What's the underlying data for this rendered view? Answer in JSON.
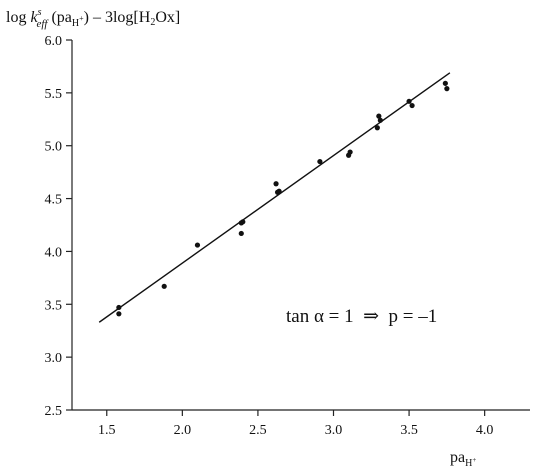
{
  "chart_data": {
    "type": "scatter",
    "ylabel": {
      "prefix": "log ",
      "k": "k",
      "k_sup": "s",
      "k_sub": "eff",
      "mid": " (pa",
      "mid_sub": "H",
      "mid_sub_sup": "+",
      "suffix_open": ") – 3log[H",
      "h2_sub": "2",
      "suffix_close": "Ox]"
    },
    "xlabel": {
      "main": "pa",
      "sub": "H",
      "sub_sup": "+"
    },
    "annotation": "tan α = 1  ⇒  p = –1",
    "x_ticks": [
      "1.5",
      "2.0",
      "2.5",
      "3.0",
      "3.5",
      "4.0"
    ],
    "y_ticks": [
      "2.5",
      "3.0",
      "3.5",
      "4.0",
      "4.5",
      "5.0",
      "5.5",
      "6.0"
    ],
    "xlim": [
      1.27,
      4.3
    ],
    "ylim": [
      2.5,
      6.0
    ],
    "grid": false,
    "points": [
      {
        "x": 1.58,
        "y": 3.47
      },
      {
        "x": 1.58,
        "y": 3.41
      },
      {
        "x": 1.88,
        "y": 3.67
      },
      {
        "x": 2.1,
        "y": 4.06
      },
      {
        "x": 2.39,
        "y": 4.27
      },
      {
        "x": 2.4,
        "y": 4.28
      },
      {
        "x": 2.39,
        "y": 4.17
      },
      {
        "x": 2.62,
        "y": 4.64
      },
      {
        "x": 2.63,
        "y": 4.56
      },
      {
        "x": 2.64,
        "y": 4.57
      },
      {
        "x": 2.91,
        "y": 4.85
      },
      {
        "x": 3.1,
        "y": 4.91
      },
      {
        "x": 3.11,
        "y": 4.94
      },
      {
        "x": 3.29,
        "y": 5.17
      },
      {
        "x": 3.3,
        "y": 5.28
      },
      {
        "x": 3.31,
        "y": 5.24
      },
      {
        "x": 3.5,
        "y": 5.42
      },
      {
        "x": 3.52,
        "y": 5.38
      },
      {
        "x": 3.74,
        "y": 5.59
      },
      {
        "x": 3.75,
        "y": 5.54
      }
    ],
    "fit_line": {
      "x": [
        1.45,
        3.77
      ],
      "y": [
        3.33,
        5.69
      ]
    }
  }
}
